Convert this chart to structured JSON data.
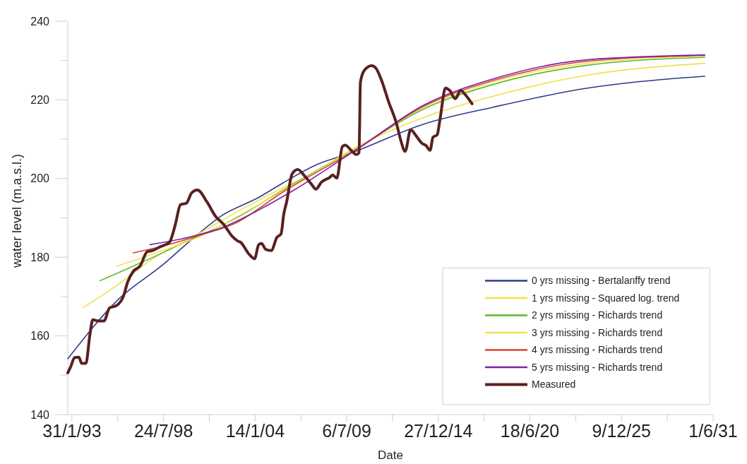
{
  "chart_data": {
    "type": "line",
    "xlabel": "Date",
    "ylabel": "water level (m.a.s.l.)",
    "xlim": [
      "1992-11-01",
      "2031-06-01"
    ],
    "ylim": [
      140,
      240
    ],
    "xticks": [
      {
        "value": "1993-01-31",
        "label": "31/1/93"
      },
      {
        "value": "1995-10-28",
        "label": null
      },
      {
        "value": "1998-07-24",
        "label": "24/7/98"
      },
      {
        "value": "2001-04-19",
        "label": null
      },
      {
        "value": "2004-01-14",
        "label": "14/1/04"
      },
      {
        "value": "2006-10-10",
        "label": null
      },
      {
        "value": "2009-07-06",
        "label": "6/7/09"
      },
      {
        "value": "2012-04-01",
        "label": null
      },
      {
        "value": "2014-12-27",
        "label": "27/12/14"
      },
      {
        "value": "2017-09-22",
        "label": null
      },
      {
        "value": "2020-06-18",
        "label": "18/6/20"
      },
      {
        "value": "2023-03-14",
        "label": null
      },
      {
        "value": "2025-12-09",
        "label": "9/12/25"
      },
      {
        "value": "2028-09-03",
        "label": null
      },
      {
        "value": "2031-06-01",
        "label": "1/6/31"
      }
    ],
    "yticks": [
      140,
      {
        "value": 150,
        "label": null
      },
      160,
      {
        "value": 170,
        "label": null
      },
      180,
      {
        "value": 190,
        "label": null
      },
      200,
      {
        "value": 210,
        "label": null
      },
      220,
      {
        "value": 230,
        "label": null
      },
      240
    ],
    "grid": false,
    "legend": "bottom right",
    "line_style": "solid",
    "marker": "none",
    "series": [
      {
        "name": "0 yrs missing - Bertalanffy trend",
        "color": "#2e3a8c",
        "x": [
          "1992-11",
          "1995-12",
          "1998-08",
          "2000-01",
          "2002-02",
          "2004-04",
          "2005-09",
          "2007-10",
          "2009-11",
          "2014-02",
          "2018-05",
          "2023-12",
          "2028-03",
          "2030-12"
        ],
        "values": [
          154.2,
          169.5,
          178.3,
          183.6,
          190.7,
          195.2,
          198.8,
          203.6,
          206.6,
          213.8,
          218.2,
          223.0,
          225.1,
          226.0
        ]
      },
      {
        "name": "1 yrs missing - Squared log. trend",
        "color": "#f2e04a",
        "x": [
          "1993-10",
          "1995-10",
          "1997-12",
          "2000-10",
          "2003-07",
          "2005-09",
          "2007-01",
          "2010-04",
          "2014-02",
          "2018-05",
          "2023-12",
          "2030-12"
        ],
        "values": [
          167.2,
          172.8,
          179.6,
          186.2,
          192.8,
          197.6,
          200.3,
          208.4,
          215.5,
          221.0,
          226.3,
          229.3
        ]
      },
      {
        "name": "2 yrs missing - Richards trend",
        "color": "#5cb82e",
        "x": [
          "1994-10",
          "1997-03",
          "2000-01",
          "2002-11",
          "2005-09",
          "2010-04",
          "2014-02",
          "2018-05",
          "2023-12",
          "2030-12"
        ],
        "values": [
          174.0,
          178.5,
          184.1,
          189.8,
          197.0,
          208.1,
          217.6,
          224.0,
          228.8,
          230.8
        ]
      },
      {
        "name": "3 yrs missing - Richards trend",
        "color": "#f0e35a",
        "x": [
          "1995-10",
          "1997-12",
          "2000-10",
          "2003-07",
          "2010-04",
          "2014-02",
          "2018-05",
          "2023-12",
          "2030-12"
        ],
        "values": [
          177.7,
          180.8,
          185.3,
          191.6,
          208.2,
          218.0,
          224.6,
          229.3,
          231.1
        ]
      },
      {
        "name": "4 yrs missing - Richards trend",
        "color": "#d9452b",
        "x": [
          "1996-10",
          "1998-08",
          "2000-10",
          "2002-11",
          "2005-09",
          "2010-04",
          "2014-02",
          "2018-05",
          "2023-12",
          "2030-12"
        ],
        "values": [
          181.1,
          182.9,
          185.6,
          188.6,
          196.5,
          207.8,
          218.3,
          225.0,
          229.8,
          231.3
        ]
      },
      {
        "name": "5 yrs missing - Richards trend",
        "color": "#7b22a8",
        "x": [
          "1997-10",
          "2000-01",
          "2002-03",
          "2004-04",
          "2006-05",
          "2010-04",
          "2014-02",
          "2018-05",
          "2023-12",
          "2030-12"
        ],
        "values": [
          183.2,
          185.0,
          187.7,
          192.0,
          197.0,
          207.8,
          218.6,
          225.4,
          230.2,
          231.4
        ]
      },
      {
        "name": "Measured",
        "color": "#5a2020",
        "x": [
          "1992-11",
          "1993-01",
          "1993-04",
          "1993-07",
          "1993-09",
          "1993-12",
          "1994-03",
          "1994-05",
          "1994-09",
          "1995-01",
          "1995-05",
          "1995-10",
          "1996-03",
          "1996-06",
          "1996-10",
          "1997-03",
          "1997-08",
          "1997-12",
          "1998-05",
          "1998-12",
          "1999-04",
          "1999-08",
          "1999-12",
          "2000-04",
          "2000-08",
          "2001-03",
          "2001-09",
          "2002-03",
          "2002-09",
          "2003-01",
          "2003-03",
          "2003-09",
          "2004-01",
          "2004-04",
          "2004-06",
          "2004-09",
          "2005-01",
          "2005-05",
          "2005-08",
          "2005-10",
          "2005-12",
          "2006-04",
          "2006-08",
          "2007-01",
          "2007-06",
          "2007-09",
          "2008-01",
          "2008-07",
          "2008-09",
          "2008-12",
          "2009-04",
          "2009-06",
          "2009-11",
          "2010-02",
          "2010-04",
          "2010-05",
          "2010-08",
          "2011-01",
          "2011-04",
          "2011-08",
          "2012-01",
          "2012-07",
          "2012-10",
          "2013-01",
          "2013-05",
          "2013-09",
          "2014-01",
          "2014-04",
          "2014-07",
          "2014-09",
          "2014-12",
          "2015-02",
          "2015-06",
          "2015-09",
          "2016-01",
          "2016-05",
          "2016-07",
          "2017-01"
        ],
        "values": [
          150.6,
          152.1,
          154.5,
          154.6,
          153.0,
          153.0,
          160.5,
          164.1,
          163.8,
          163.8,
          167.1,
          167.7,
          170.1,
          173.7,
          176.4,
          177.8,
          181.4,
          181.7,
          182.6,
          183.8,
          188.0,
          193.4,
          193.7,
          196.4,
          197.1,
          194.0,
          190.4,
          188.3,
          185.3,
          184.1,
          183.8,
          180.8,
          179.6,
          183.2,
          183.5,
          182.0,
          181.7,
          185.0,
          185.9,
          191.0,
          194.0,
          201.2,
          202.3,
          200.6,
          198.5,
          197.3,
          199.1,
          200.3,
          200.9,
          200.1,
          208.1,
          208.5,
          206.9,
          206.1,
          206.6,
          224.5,
          227.6,
          228.7,
          228.1,
          225.1,
          219.7,
          213.8,
          209.6,
          206.9,
          212.4,
          210.8,
          209.0,
          208.4,
          207.2,
          210.5,
          211.1,
          215.0,
          223.0,
          222.4,
          220.3,
          222.4,
          221.8,
          219.0
        ]
      }
    ]
  }
}
